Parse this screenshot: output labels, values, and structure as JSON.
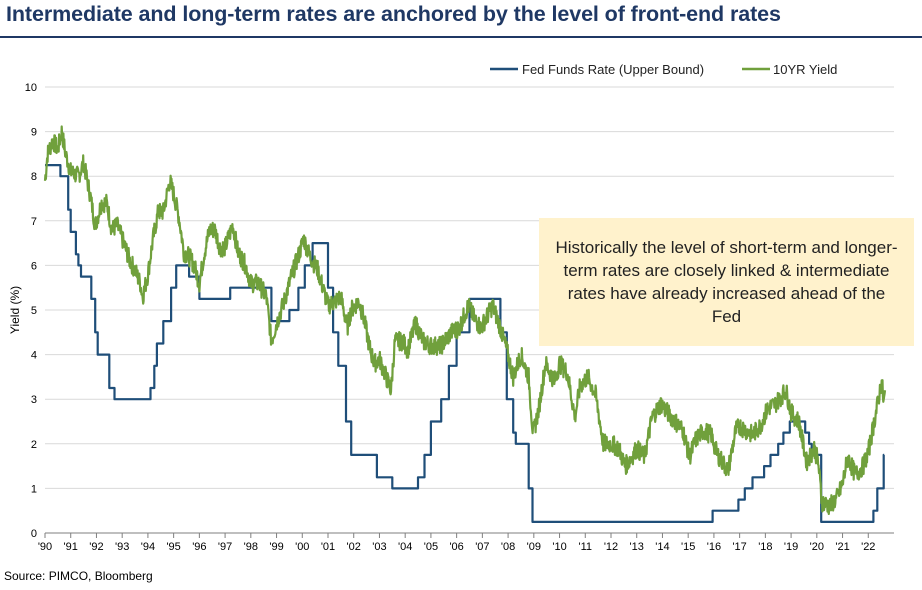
{
  "title": "Intermediate and long-term rates are anchored by the level of front-end rates",
  "source": "Source: PIMCO, Bloomberg",
  "annotation": "Historically the level of short-term and longer-term rates are closely linked & intermediate rates have already increased ahead of the Fed",
  "colors": {
    "title": "#1f3864",
    "fed_funds": "#1f4e79",
    "ten_year": "#70a03c",
    "annotation_bg": "#fff2cc",
    "gridline": "#d9d9d9"
  },
  "chart_data": {
    "type": "line",
    "ylabel": "Yield (%)",
    "xlabel": "",
    "ylim": [
      0,
      10
    ],
    "yticks": [
      0,
      1,
      2,
      3,
      4,
      5,
      6,
      7,
      8,
      9,
      10
    ],
    "xlim": [
      1990,
      2022.8
    ],
    "xticks": [
      {
        "x": 1990,
        "label": "'90"
      },
      {
        "x": 1991,
        "label": "'91"
      },
      {
        "x": 1992,
        "label": "'92"
      },
      {
        "x": 1993,
        "label": "'93"
      },
      {
        "x": 1994,
        "label": "'94"
      },
      {
        "x": 1995,
        "label": "'95"
      },
      {
        "x": 1996,
        "label": "'96"
      },
      {
        "x": 1997,
        "label": "'97"
      },
      {
        "x": 1998,
        "label": "'98"
      },
      {
        "x": 1999,
        "label": "'99"
      },
      {
        "x": 2000,
        "label": "'00"
      },
      {
        "x": 2001,
        "label": "'01"
      },
      {
        "x": 2002,
        "label": "'02"
      },
      {
        "x": 2003,
        "label": "'03"
      },
      {
        "x": 2004,
        "label": "'04"
      },
      {
        "x": 2005,
        "label": "'05"
      },
      {
        "x": 2006,
        "label": "'06"
      },
      {
        "x": 2007,
        "label": "'07"
      },
      {
        "x": 2008,
        "label": "'08"
      },
      {
        "x": 2009,
        "label": "'09"
      },
      {
        "x": 2010,
        "label": "'10"
      },
      {
        "x": 2011,
        "label": "'11"
      },
      {
        "x": 2012,
        "label": "'12"
      },
      {
        "x": 2013,
        "label": "'13"
      },
      {
        "x": 2014,
        "label": "'14"
      },
      {
        "x": 2015,
        "label": "'15"
      },
      {
        "x": 2016,
        "label": "'16"
      },
      {
        "x": 2017,
        "label": "'17"
      },
      {
        "x": 2018,
        "label": "'18"
      },
      {
        "x": 2019,
        "label": "'19"
      },
      {
        "x": 2020,
        "label": "'20"
      },
      {
        "x": 2021,
        "label": "'21"
      },
      {
        "x": 2022,
        "label": "'22"
      }
    ],
    "grid": "horizontal",
    "legend_position": "top-right",
    "series": [
      {
        "name": "Fed Funds Rate (Upper Bound)",
        "style": "step",
        "color": "#1f4e79",
        "points": [
          [
            1990.0,
            8.25
          ],
          [
            1990.6,
            8.0
          ],
          [
            1990.9,
            7.25
          ],
          [
            1991.0,
            6.75
          ],
          [
            1991.2,
            6.25
          ],
          [
            1991.3,
            6.0
          ],
          [
            1991.4,
            5.75
          ],
          [
            1991.8,
            5.25
          ],
          [
            1991.95,
            4.5
          ],
          [
            1992.05,
            4.0
          ],
          [
            1992.5,
            3.25
          ],
          [
            1992.7,
            3.0
          ],
          [
            1994.1,
            3.25
          ],
          [
            1994.25,
            3.75
          ],
          [
            1994.35,
            4.25
          ],
          [
            1994.6,
            4.75
          ],
          [
            1994.9,
            5.5
          ],
          [
            1995.1,
            6.0
          ],
          [
            1995.6,
            5.75
          ],
          [
            1996.0,
            5.25
          ],
          [
            1997.2,
            5.5
          ],
          [
            1998.8,
            4.75
          ],
          [
            1999.5,
            5.0
          ],
          [
            1999.85,
            5.5
          ],
          [
            2000.1,
            6.0
          ],
          [
            2000.4,
            6.5
          ],
          [
            2001.0,
            5.5
          ],
          [
            2001.2,
            4.5
          ],
          [
            2001.4,
            3.75
          ],
          [
            2001.7,
            2.5
          ],
          [
            2001.9,
            1.75
          ],
          [
            2002.9,
            1.25
          ],
          [
            2003.5,
            1.0
          ],
          [
            2004.5,
            1.25
          ],
          [
            2004.75,
            1.75
          ],
          [
            2005.0,
            2.5
          ],
          [
            2005.4,
            3.0
          ],
          [
            2005.7,
            3.75
          ],
          [
            2006.0,
            4.5
          ],
          [
            2006.5,
            5.25
          ],
          [
            2007.7,
            4.5
          ],
          [
            2007.95,
            3.0
          ],
          [
            2008.2,
            2.25
          ],
          [
            2008.3,
            2.0
          ],
          [
            2008.8,
            1.0
          ],
          [
            2008.95,
            0.25
          ],
          [
            2015.95,
            0.5
          ],
          [
            2016.95,
            0.75
          ],
          [
            2017.2,
            1.0
          ],
          [
            2017.5,
            1.25
          ],
          [
            2017.95,
            1.5
          ],
          [
            2018.2,
            1.75
          ],
          [
            2018.5,
            2.0
          ],
          [
            2018.7,
            2.25
          ],
          [
            2018.95,
            2.5
          ],
          [
            2019.55,
            2.25
          ],
          [
            2019.7,
            2.0
          ],
          [
            2019.8,
            1.75
          ],
          [
            2020.17,
            0.25
          ],
          [
            2022.2,
            0.5
          ],
          [
            2022.35,
            1.0
          ],
          [
            2022.6,
            1.75
          ],
          [
            2022.62,
            1.75
          ]
        ]
      },
      {
        "name": "10YR Yield",
        "style": "line",
        "color": "#70a03c",
        "points": [
          [
            1990.0,
            7.9
          ],
          [
            1990.1,
            8.5
          ],
          [
            1990.3,
            8.8
          ],
          [
            1990.5,
            8.6
          ],
          [
            1990.65,
            9.0
          ],
          [
            1990.8,
            8.5
          ],
          [
            1991.0,
            8.1
          ],
          [
            1991.3,
            8.0
          ],
          [
            1991.5,
            8.3
          ],
          [
            1991.75,
            7.6
          ],
          [
            1991.95,
            6.9
          ],
          [
            1992.2,
            7.4
          ],
          [
            1992.4,
            7.4
          ],
          [
            1992.6,
            6.8
          ],
          [
            1992.8,
            6.9
          ],
          [
            1993.0,
            6.6
          ],
          [
            1993.3,
            6.1
          ],
          [
            1993.5,
            5.9
          ],
          [
            1993.7,
            5.6
          ],
          [
            1993.8,
            5.3
          ],
          [
            1994.0,
            5.8
          ],
          [
            1994.2,
            6.6
          ],
          [
            1994.4,
            7.2
          ],
          [
            1994.6,
            7.2
          ],
          [
            1994.85,
            7.9
          ],
          [
            1995.0,
            7.6
          ],
          [
            1995.2,
            7.1
          ],
          [
            1995.4,
            6.3
          ],
          [
            1995.6,
            6.2
          ],
          [
            1995.8,
            6.0
          ],
          [
            1996.0,
            5.6
          ],
          [
            1996.2,
            6.3
          ],
          [
            1996.4,
            6.8
          ],
          [
            1996.6,
            6.8
          ],
          [
            1996.8,
            6.4
          ],
          [
            1997.0,
            6.4
          ],
          [
            1997.3,
            6.9
          ],
          [
            1997.5,
            6.3
          ],
          [
            1997.8,
            6.0
          ],
          [
            1998.0,
            5.6
          ],
          [
            1998.3,
            5.6
          ],
          [
            1998.6,
            5.3
          ],
          [
            1998.8,
            4.3
          ],
          [
            1999.0,
            4.7
          ],
          [
            1999.3,
            5.2
          ],
          [
            1999.6,
            5.8
          ],
          [
            1999.9,
            6.3
          ],
          [
            2000.05,
            6.6
          ],
          [
            2000.3,
            6.2
          ],
          [
            2000.6,
            5.9
          ],
          [
            2000.9,
            5.3
          ],
          [
            2001.0,
            5.1
          ],
          [
            2001.3,
            5.2
          ],
          [
            2001.5,
            5.3
          ],
          [
            2001.75,
            4.6
          ],
          [
            2001.9,
            5.0
          ],
          [
            2002.2,
            5.2
          ],
          [
            2002.4,
            4.8
          ],
          [
            2002.6,
            4.2
          ],
          [
            2002.8,
            3.8
          ],
          [
            2003.0,
            3.9
          ],
          [
            2003.45,
            3.2
          ],
          [
            2003.6,
            4.3
          ],
          [
            2003.9,
            4.3
          ],
          [
            2004.1,
            4.1
          ],
          [
            2004.4,
            4.7
          ],
          [
            2004.7,
            4.3
          ],
          [
            2005.0,
            4.2
          ],
          [
            2005.4,
            4.2
          ],
          [
            2005.8,
            4.5
          ],
          [
            2006.1,
            4.6
          ],
          [
            2006.45,
            5.1
          ],
          [
            2006.7,
            4.8
          ],
          [
            2006.95,
            4.6
          ],
          [
            2007.4,
            5.1
          ],
          [
            2007.7,
            4.6
          ],
          [
            2007.95,
            4.1
          ],
          [
            2008.2,
            3.5
          ],
          [
            2008.5,
            4.0
          ],
          [
            2008.8,
            3.5
          ],
          [
            2008.97,
            2.2
          ],
          [
            2009.2,
            2.8
          ],
          [
            2009.45,
            3.8
          ],
          [
            2009.8,
            3.4
          ],
          [
            2010.0,
            3.8
          ],
          [
            2010.3,
            3.6
          ],
          [
            2010.6,
            2.6
          ],
          [
            2010.8,
            3.3
          ],
          [
            2011.1,
            3.5
          ],
          [
            2011.4,
            3.1
          ],
          [
            2011.7,
            2.0
          ],
          [
            2012.0,
            2.0
          ],
          [
            2012.3,
            1.9
          ],
          [
            2012.55,
            1.5
          ],
          [
            2012.8,
            1.7
          ],
          [
            2013.0,
            1.9
          ],
          [
            2013.3,
            1.7
          ],
          [
            2013.6,
            2.6
          ],
          [
            2013.95,
            2.9
          ],
          [
            2014.2,
            2.7
          ],
          [
            2014.5,
            2.5
          ],
          [
            2014.8,
            2.3
          ],
          [
            2015.05,
            1.7
          ],
          [
            2015.3,
            2.1
          ],
          [
            2015.6,
            2.3
          ],
          [
            2015.9,
            2.2
          ],
          [
            2016.1,
            1.8
          ],
          [
            2016.55,
            1.4
          ],
          [
            2016.85,
            2.3
          ],
          [
            2017.0,
            2.4
          ],
          [
            2017.5,
            2.2
          ],
          [
            2017.8,
            2.4
          ],
          [
            2018.1,
            2.8
          ],
          [
            2018.4,
            2.9
          ],
          [
            2018.8,
            3.2
          ],
          [
            2019.0,
            2.7
          ],
          [
            2019.3,
            2.5
          ],
          [
            2019.6,
            1.6
          ],
          [
            2019.9,
            1.9
          ],
          [
            2020.05,
            1.6
          ],
          [
            2020.2,
            0.7
          ],
          [
            2020.5,
            0.6
          ],
          [
            2020.8,
            0.8
          ],
          [
            2021.0,
            1.1
          ],
          [
            2021.2,
            1.7
          ],
          [
            2021.5,
            1.3
          ],
          [
            2021.8,
            1.5
          ],
          [
            2022.0,
            1.8
          ],
          [
            2022.2,
            2.4
          ],
          [
            2022.4,
            3.0
          ],
          [
            2022.52,
            3.45
          ],
          [
            2022.6,
            2.9
          ],
          [
            2022.65,
            3.2
          ]
        ]
      }
    ]
  }
}
